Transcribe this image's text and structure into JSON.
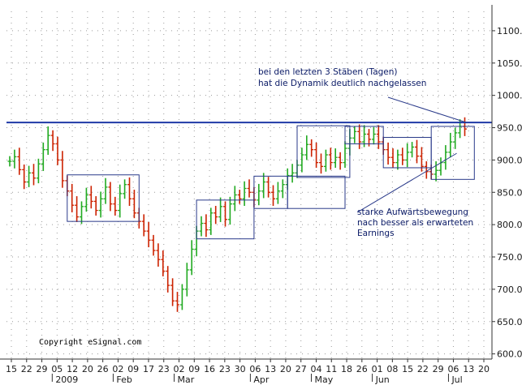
{
  "chart_data": {
    "type": "ohlc",
    "y_axis": {
      "ylim": [
        592,
        1130
      ],
      "ticks": [
        "1100.00",
        "1050.00",
        "1000.00",
        "950.00",
        "900.00",
        "850.00",
        "800.00",
        "750.00",
        "700.00",
        "650.00",
        "600.00"
      ]
    },
    "x_axis": {
      "date_ticks": [
        "15",
        "22",
        "29",
        "05",
        "12",
        "20",
        "26",
        "02",
        "09",
        "17",
        "23",
        "02",
        "09",
        "16",
        "23",
        "30",
        "06",
        "13",
        "20",
        "27",
        "04",
        "11",
        "18",
        "26",
        "01",
        "08",
        "15",
        "22",
        "29",
        "06",
        "13",
        "20"
      ],
      "months": [
        "2009",
        "Feb",
        "Mar",
        "Apr",
        "May",
        "Jun",
        "Jul"
      ]
    },
    "grid": true,
    "resistance_line": 958,
    "price_series": [
      [
        0,
        898
      ],
      [
        2,
        905
      ],
      [
        4,
        885
      ],
      [
        6,
        866
      ],
      [
        8,
        880
      ],
      [
        10,
        872
      ],
      [
        12,
        894
      ],
      [
        14,
        916
      ],
      [
        16,
        938
      ],
      [
        18,
        925
      ],
      [
        20,
        900
      ],
      [
        22,
        868
      ],
      [
        24,
        852
      ],
      [
        26,
        830
      ],
      [
        28,
        812
      ],
      [
        30,
        828
      ],
      [
        32,
        846
      ],
      [
        34,
        836
      ],
      [
        36,
        822
      ],
      [
        38,
        840
      ],
      [
        40,
        858
      ],
      [
        42,
        832
      ],
      [
        44,
        822
      ],
      [
        46,
        848
      ],
      [
        48,
        862
      ],
      [
        50,
        840
      ],
      [
        52,
        818
      ],
      [
        54,
        805
      ],
      [
        56,
        790
      ],
      [
        58,
        776
      ],
      [
        60,
        760
      ],
      [
        62,
        746
      ],
      [
        64,
        728
      ],
      [
        66,
        706
      ],
      [
        68,
        682
      ],
      [
        70,
        676
      ],
      [
        72,
        700
      ],
      [
        74,
        730
      ],
      [
        76,
        762
      ],
      [
        78,
        790
      ],
      [
        80,
        802
      ],
      [
        82,
        792
      ],
      [
        84,
        818
      ],
      [
        86,
        812
      ],
      [
        88,
        828
      ],
      [
        90,
        808
      ],
      [
        92,
        832
      ],
      [
        94,
        846
      ],
      [
        96,
        840
      ],
      [
        98,
        856
      ],
      [
        100,
        850
      ],
      [
        102,
        838
      ],
      [
        104,
        852
      ],
      [
        106,
        866
      ],
      [
        108,
        850
      ],
      [
        110,
        840
      ],
      [
        112,
        852
      ],
      [
        114,
        862
      ],
      [
        116,
        876
      ],
      [
        118,
        880
      ],
      [
        120,
        892
      ],
      [
        122,
        908
      ],
      [
        124,
        924
      ],
      [
        126,
        916
      ],
      [
        128,
        896
      ],
      [
        130,
        890
      ],
      [
        132,
        908
      ],
      [
        134,
        896
      ],
      [
        136,
        904
      ],
      [
        138,
        896
      ],
      [
        140,
        918
      ],
      [
        142,
        934
      ],
      [
        144,
        944
      ],
      [
        146,
        928
      ],
      [
        148,
        940
      ],
      [
        150,
        932
      ],
      [
        152,
        940
      ],
      [
        154,
        928
      ],
      [
        156,
        916
      ],
      [
        158,
        904
      ],
      [
        160,
        896
      ],
      [
        162,
        908
      ],
      [
        164,
        900
      ],
      [
        166,
        912
      ],
      [
        168,
        920
      ],
      [
        170,
        906
      ],
      [
        172,
        890
      ],
      [
        174,
        882
      ],
      [
        176,
        878
      ],
      [
        178,
        884
      ],
      [
        180,
        896
      ],
      [
        182,
        912
      ],
      [
        184,
        928
      ],
      [
        186,
        942
      ],
      [
        188,
        952
      ],
      [
        190,
        948
      ]
    ],
    "boxes": [
      {
        "x": [
          24,
          54
        ],
        "y": [
          805,
          877
        ]
      },
      {
        "x": [
          78,
          102
        ],
        "y": [
          778,
          838
        ]
      },
      {
        "x": [
          102,
          116
        ],
        "y": [
          825,
          875
        ]
      },
      {
        "x": [
          116,
          140
        ],
        "y": [
          825,
          875
        ]
      },
      {
        "x": [
          120,
          142
        ],
        "y": [
          873,
          953
        ]
      },
      {
        "x": [
          140,
          156
        ],
        "y": [
          925,
          952
        ]
      },
      {
        "x": [
          156,
          176
        ],
        "y": [
          888,
          935
        ]
      },
      {
        "x": [
          176,
          194
        ],
        "y": [
          870,
          952
        ]
      }
    ],
    "annotations": [
      {
        "lines": [
          "bei den letzten 3 Stäben (Tagen)",
          "hat die Dynamik deutlich nachgelassen"
        ],
        "target": [
          190,
          958
        ]
      },
      {
        "lines": [
          "starke Aufwärtsbewegung",
          "nach besser als erwarteten",
          "Earnings"
        ],
        "target": [
          188,
          948
        ]
      }
    ],
    "copyright": "Copyright eSignal.com"
  },
  "colors": {
    "up": "#22aa22",
    "down": "#cc2200",
    "resistance": "#1f3aa6",
    "box": "#2a3a8a",
    "grid": "#9a9a9a",
    "annotation": "#0a1a66"
  }
}
